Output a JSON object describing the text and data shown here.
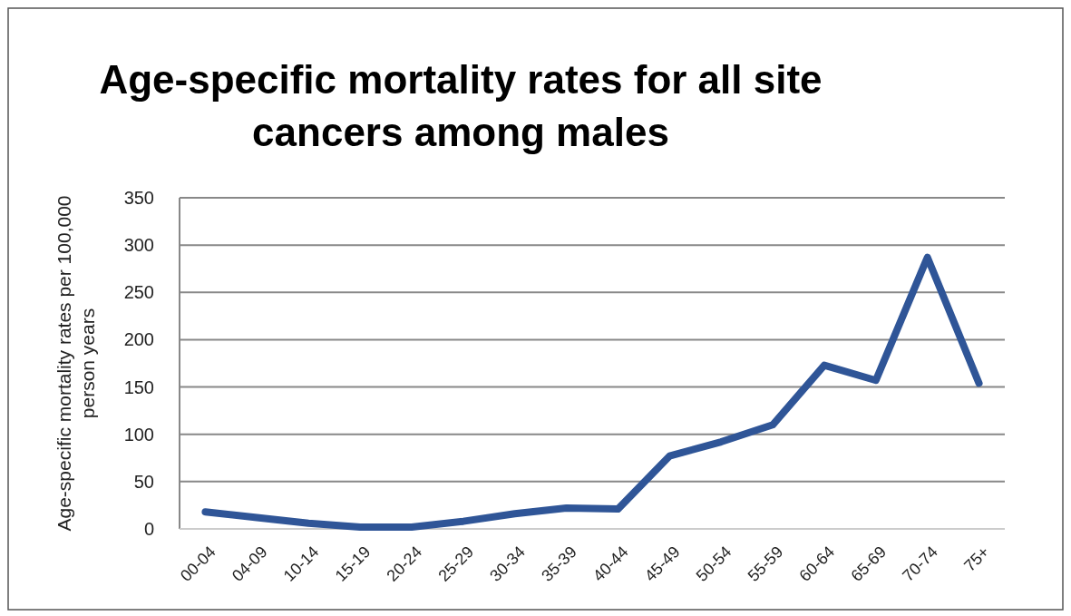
{
  "chart_data": {
    "type": "line",
    "title": "Age-specific mortality rates for all site cancers among males",
    "ylabel": "Age-specific mortality rates per 100,000 person years",
    "categories": [
      "00-04",
      "04-09",
      "10-14",
      "15-19",
      "20-24",
      "25-29",
      "30-34",
      "35-39",
      "40-44",
      "45-49",
      "50-54",
      "55-59",
      "60-64",
      "65-69",
      "70-74",
      "75+"
    ],
    "series": [
      {
        "color": "#2f5597",
        "values": [
          18,
          12,
          6,
          2,
          2,
          8,
          16,
          22,
          21,
          77,
          92,
          110,
          173,
          157,
          287,
          154
        ]
      }
    ],
    "ylim": [
      0,
      350
    ],
    "yticks": [
      0,
      50,
      100,
      150,
      200,
      250,
      300,
      350
    ],
    "grid": "y",
    "marker": "none",
    "line_style": "solid"
  }
}
